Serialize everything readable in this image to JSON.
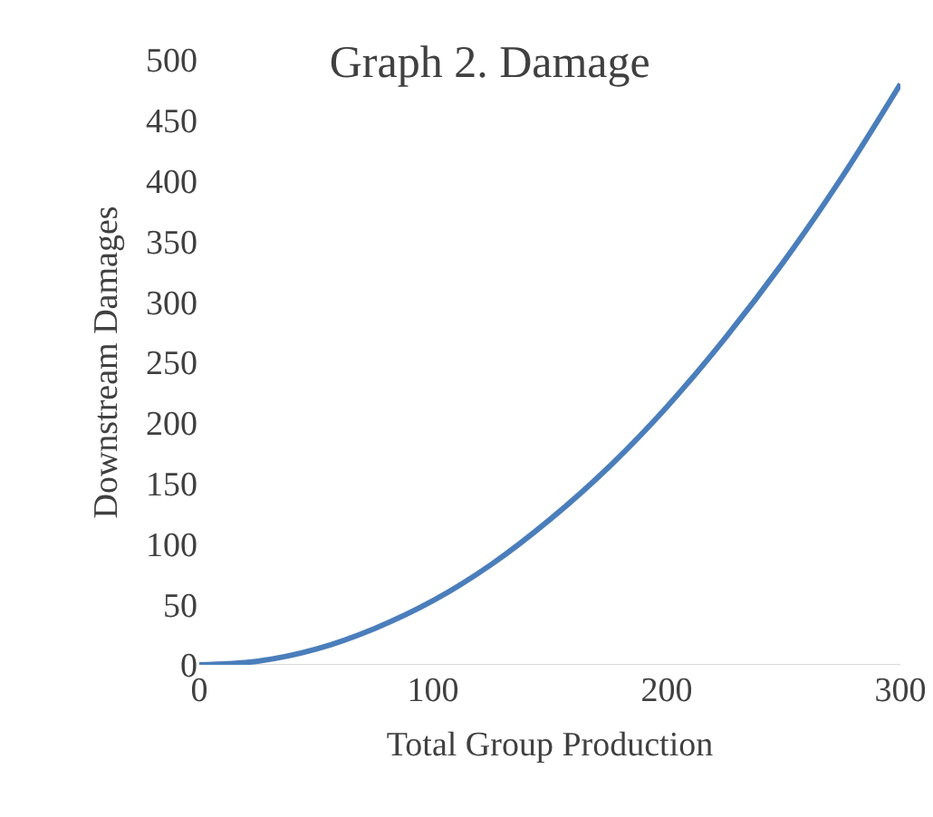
{
  "chart_data": {
    "type": "line",
    "title": "Graph 2. Damage",
    "xlabel": "Total Group Production",
    "ylabel": "Downstream Damages",
    "x": [
      0,
      25,
      50,
      75,
      100,
      125,
      150,
      175,
      200,
      225,
      250,
      275,
      300
    ],
    "series": [
      {
        "color": "#4a7ebb",
        "values": [
          0,
          3,
          13,
          30,
          53,
          83,
          120,
          163,
          213,
          270,
          333,
          403,
          480
        ]
      }
    ],
    "xlim": [
      0,
      300
    ],
    "xticks": [
      0,
      100,
      200,
      300
    ],
    "ylim": [
      0,
      500
    ],
    "yticks": [
      0,
      50,
      100,
      150,
      200,
      250,
      300,
      350,
      400,
      450,
      500
    ],
    "grid": false,
    "marker": "none",
    "line_style": "solid"
  }
}
